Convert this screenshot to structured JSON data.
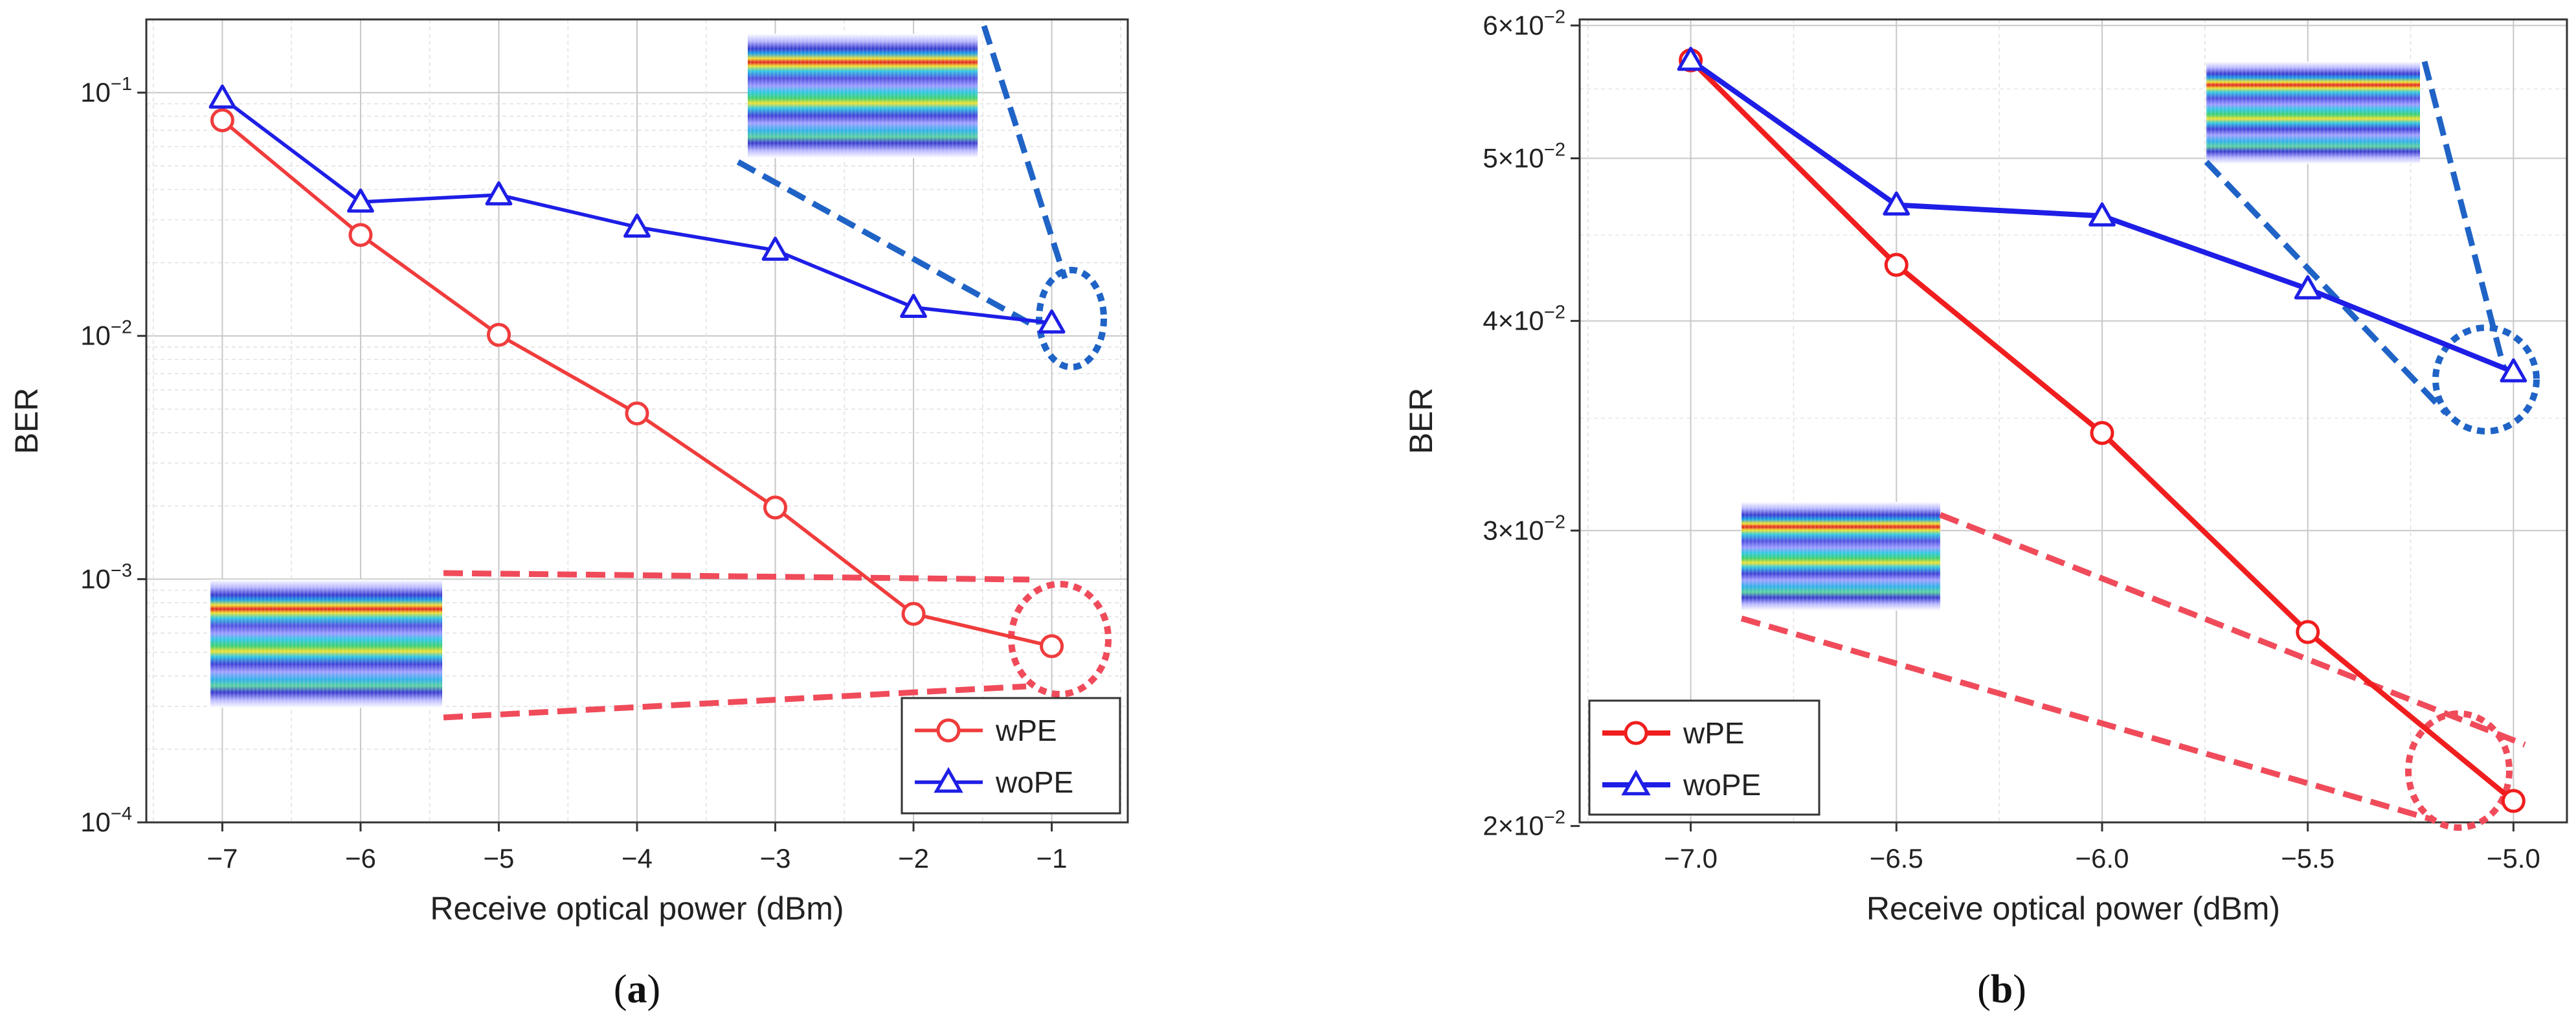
{
  "chart_data": [
    {
      "id": "a",
      "type": "line",
      "yscale": "log",
      "caption": "a",
      "xlabel": "Receive optical power (dBm)",
      "ylabel": "BER",
      "xlim": [
        -7.55,
        -0.45
      ],
      "ylim": [
        0.0001,
        0.2
      ],
      "x": [
        -7,
        -6,
        -5,
        -4,
        -3,
        -2,
        -1
      ],
      "x_ticks": [
        -7,
        -6,
        -5,
        -4,
        -3,
        -2,
        -1
      ],
      "x_tick_labels": [
        "−7",
        "−6",
        "−5",
        "−4",
        "−3",
        "−2",
        "−1"
      ],
      "y_ticks": [
        {
          "value": 0.1,
          "base": "10",
          "exp": "−1"
        },
        {
          "value": 0.01,
          "base": "10",
          "exp": "−2"
        },
        {
          "value": 0.001,
          "base": "10",
          "exp": "−3"
        },
        {
          "value": 0.0001,
          "base": "10",
          "exp": "−4"
        }
      ],
      "grid": true,
      "legend_position": "bottom-right",
      "series": [
        {
          "name": "wPE",
          "color": "#f03c3c",
          "marker": "circle",
          "values": [
            0.077,
            0.026,
            0.0101,
            0.0048,
            0.00197,
            0.00072,
            0.00053
          ]
        },
        {
          "name": "woPE",
          "color": "#1e1ee6",
          "marker": "triangle",
          "values": [
            0.095,
            0.0355,
            0.038,
            0.028,
            0.0225,
            0.0131,
            0.0113
          ]
        }
      ],
      "annotations": [
        {
          "target_series": "woPE",
          "target_x": -1,
          "color": "#1f63c6",
          "note": "constellation inset, woPE at -1 dBm"
        },
        {
          "target_series": "wPE",
          "target_x": -1,
          "color": "#f04b5a",
          "note": "constellation inset, wPE at -1 dBm"
        }
      ]
    },
    {
      "id": "b",
      "type": "line",
      "yscale": "log",
      "caption": "b",
      "xlabel": "Receive optical power (dBm)",
      "ylabel": "BER",
      "xlim": [
        -7.27,
        -4.87
      ],
      "ylim": [
        0.0201,
        0.0605
      ],
      "x": [
        -7.0,
        -6.5,
        -6.0,
        -5.5,
        -5.0
      ],
      "x_ticks": [
        -7.0,
        -6.5,
        -6.0,
        -5.5,
        -5.0
      ],
      "x_tick_labels": [
        "−7.0",
        "−6.5",
        "−6.0",
        "−5.5",
        "−5.0"
      ],
      "y_ticks": [
        {
          "value": 0.06,
          "base": "6×10",
          "exp": "−2"
        },
        {
          "value": 0.05,
          "base": "5×10",
          "exp": "−2"
        },
        {
          "value": 0.04,
          "base": "4×10",
          "exp": "−2"
        },
        {
          "value": 0.03,
          "base": "3×10",
          "exp": "−2"
        },
        {
          "value": 0.02,
          "base": "2×10",
          "exp": "−2"
        }
      ],
      "grid": true,
      "legend_position": "bottom-left",
      "series": [
        {
          "name": "wPE",
          "color": "#f01e1e",
          "marker": "circle",
          "values": [
            0.0572,
            0.0432,
            0.0343,
            0.0261,
            0.0207
          ]
        },
        {
          "name": "woPE",
          "color": "#1e1ee6",
          "marker": "triangle",
          "values": [
            0.0572,
            0.0469,
            0.0462,
            0.0418,
            0.0373
          ]
        }
      ],
      "annotations": [
        {
          "target_series": "woPE",
          "target_x": -5.0,
          "color": "#1f63c6",
          "note": "constellation inset, woPE at -5.0 dBm"
        },
        {
          "target_series": "wPE",
          "target_x": -5.0,
          "color": "#f04b5a",
          "note": "constellation inset, wPE at -5.0 dBm"
        }
      ]
    }
  ]
}
